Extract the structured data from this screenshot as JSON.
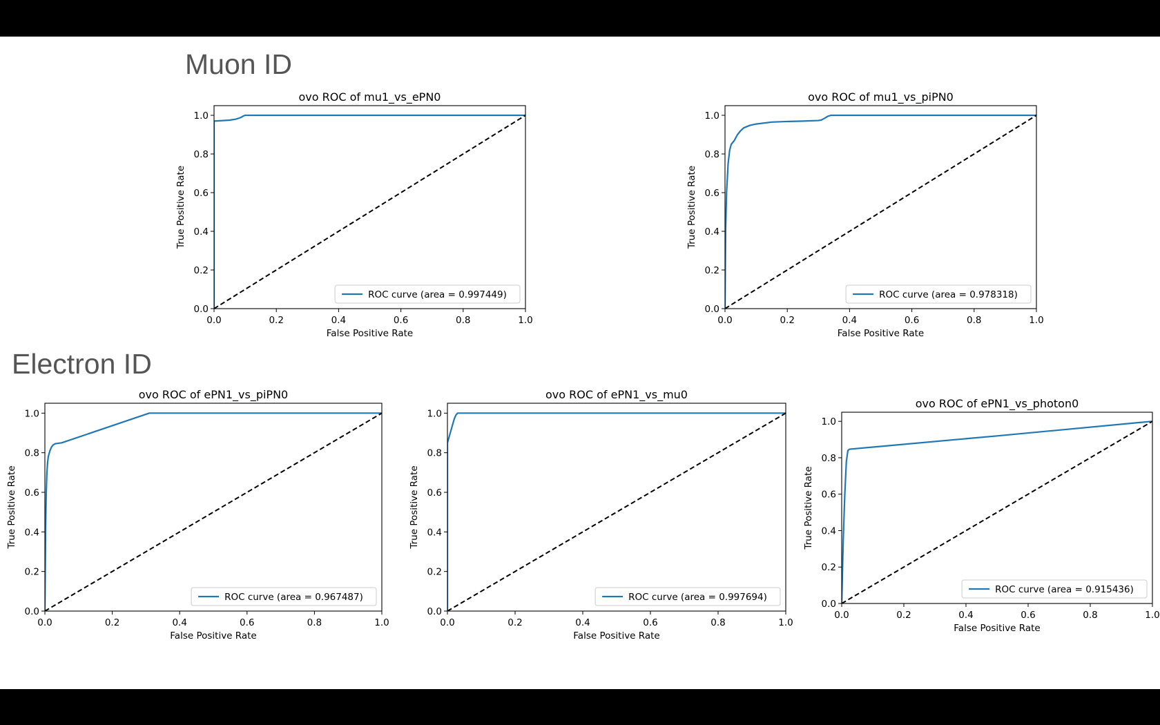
{
  "sections": {
    "muon_heading": "Muon ID",
    "electron_heading": "Electron ID"
  },
  "colors": {
    "roc_curve": "#1f77b4",
    "diagonal": "#000000",
    "heading_text": "#555555",
    "slide_background": "#ffffff",
    "letterbox": "#000000"
  },
  "chart_data": [
    {
      "type": "line",
      "section": "Muon ID",
      "title": "ovo ROC of mu1_vs_ePN0",
      "xlabel": "False Positive Rate",
      "ylabel": "True Positive Rate",
      "xlim": [
        0.0,
        1.0
      ],
      "ylim": [
        0.0,
        1.05
      ],
      "xticks": [
        "0.0",
        "0.2",
        "0.4",
        "0.6",
        "0.8",
        "1.0"
      ],
      "yticks": [
        "0.0",
        "0.2",
        "0.4",
        "0.6",
        "0.8",
        "1.0"
      ],
      "grid": false,
      "legend_position": "lower right",
      "series": [
        {
          "name": "ROC curve (area = 0.997449)",
          "style": "solid",
          "color": "#1f77b4",
          "x": [
            0.0,
            0.0,
            0.02,
            0.05,
            0.07,
            0.085,
            0.095,
            0.1,
            0.2,
            0.5,
            1.0
          ],
          "y": [
            0.0,
            0.97,
            0.972,
            0.975,
            0.98,
            0.988,
            0.997,
            1.0,
            1.0,
            1.0,
            1.0
          ]
        },
        {
          "name": "",
          "style": "dashed",
          "color": "#000000",
          "x": [
            0.0,
            1.0
          ],
          "y": [
            0.0,
            1.0
          ]
        }
      ]
    },
    {
      "type": "line",
      "section": "Muon ID",
      "title": "ovo ROC of mu1_vs_piPN0",
      "xlabel": "False Positive Rate",
      "ylabel": "True Positive Rate",
      "xlim": [
        0.0,
        1.0
      ],
      "ylim": [
        0.0,
        1.05
      ],
      "xticks": [
        "0.0",
        "0.2",
        "0.4",
        "0.6",
        "0.8",
        "1.0"
      ],
      "yticks": [
        "0.0",
        "0.2",
        "0.4",
        "0.6",
        "0.8",
        "1.0"
      ],
      "grid": false,
      "legend_position": "lower right",
      "series": [
        {
          "name": "ROC curve (area = 0.978318)",
          "style": "solid",
          "color": "#1f77b4",
          "x": [
            0.0,
            0.002,
            0.005,
            0.01,
            0.015,
            0.02,
            0.03,
            0.04,
            0.05,
            0.06,
            0.08,
            0.1,
            0.15,
            0.2,
            0.25,
            0.3,
            0.31,
            0.32,
            0.33,
            0.34,
            0.4,
            0.6,
            1.0
          ],
          "y": [
            0.0,
            0.4,
            0.6,
            0.75,
            0.82,
            0.85,
            0.87,
            0.9,
            0.92,
            0.935,
            0.948,
            0.955,
            0.965,
            0.968,
            0.97,
            0.973,
            0.976,
            0.985,
            0.995,
            1.0,
            1.0,
            1.0,
            1.0
          ]
        },
        {
          "name": "",
          "style": "dashed",
          "color": "#000000",
          "x": [
            0.0,
            1.0
          ],
          "y": [
            0.0,
            1.0
          ]
        }
      ]
    },
    {
      "type": "line",
      "section": "Electron ID",
      "title": "ovo ROC of ePN1_vs_piPN0",
      "xlabel": "False Positive Rate",
      "ylabel": "True Positive Rate",
      "xlim": [
        0.0,
        1.0
      ],
      "ylim": [
        0.0,
        1.05
      ],
      "xticks": [
        "0.0",
        "0.2",
        "0.4",
        "0.6",
        "0.8",
        "1.0"
      ],
      "yticks": [
        "0.0",
        "0.2",
        "0.4",
        "0.6",
        "0.8",
        "1.0"
      ],
      "grid": false,
      "legend_position": "lower right",
      "series": [
        {
          "name": "ROC curve (area = 0.967487)",
          "style": "solid",
          "color": "#1f77b4",
          "x": [
            0.0,
            0.002,
            0.004,
            0.006,
            0.008,
            0.01,
            0.015,
            0.02,
            0.025,
            0.03,
            0.04,
            0.05,
            0.31,
            0.5,
            1.0
          ],
          "y": [
            0.0,
            0.4,
            0.6,
            0.7,
            0.75,
            0.78,
            0.81,
            0.83,
            0.84,
            0.845,
            0.848,
            0.85,
            1.0,
            1.0,
            1.0
          ]
        },
        {
          "name": "",
          "style": "dashed",
          "color": "#000000",
          "x": [
            0.0,
            1.0
          ],
          "y": [
            0.0,
            1.0
          ]
        }
      ]
    },
    {
      "type": "line",
      "section": "Electron ID",
      "title": "ovo ROC of ePN1_vs_mu0",
      "xlabel": "False Positive Rate",
      "ylabel": "True Positive Rate",
      "xlim": [
        0.0,
        1.0
      ],
      "ylim": [
        0.0,
        1.05
      ],
      "xticks": [
        "0.0",
        "0.2",
        "0.4",
        "0.6",
        "0.8",
        "1.0"
      ],
      "yticks": [
        "0.0",
        "0.2",
        "0.4",
        "0.6",
        "0.8",
        "1.0"
      ],
      "grid": false,
      "legend_position": "lower right",
      "series": [
        {
          "name": "ROC curve (area = 0.997694)",
          "style": "solid",
          "color": "#1f77b4",
          "x": [
            0.0,
            0.0,
            0.005,
            0.01,
            0.015,
            0.02,
            0.025,
            0.03,
            0.5,
            1.0
          ],
          "y": [
            0.0,
            0.85,
            0.88,
            0.91,
            0.94,
            0.97,
            0.99,
            1.0,
            1.0,
            1.0
          ]
        },
        {
          "name": "",
          "style": "dashed",
          "color": "#000000",
          "x": [
            0.0,
            1.0
          ],
          "y": [
            0.0,
            1.0
          ]
        }
      ]
    },
    {
      "type": "line",
      "section": "Electron ID",
      "title": "ovo ROC of ePN1_vs_photon0",
      "xlabel": "False Positive Rate",
      "ylabel": "True Positive Rate",
      "xlim": [
        0.0,
        1.0
      ],
      "ylim": [
        0.0,
        1.05
      ],
      "xticks": [
        "0.0",
        "0.2",
        "0.4",
        "0.6",
        "0.8",
        "1.0"
      ],
      "yticks": [
        "0.0",
        "0.2",
        "0.4",
        "0.6",
        "0.8",
        "1.0"
      ],
      "grid": false,
      "legend_position": "lower right",
      "series": [
        {
          "name": "ROC curve (area = 0.915436)",
          "style": "solid",
          "color": "#1f77b4",
          "x": [
            0.0,
            0.005,
            0.01,
            0.015,
            0.02,
            0.025,
            0.5,
            1.0
          ],
          "y": [
            0.0,
            0.35,
            0.6,
            0.78,
            0.84,
            0.847,
            0.92,
            1.0
          ]
        },
        {
          "name": "",
          "style": "dashed",
          "color": "#000000",
          "x": [
            0.0,
            1.0
          ],
          "y": [
            0.0,
            1.0
          ]
        }
      ]
    }
  ]
}
